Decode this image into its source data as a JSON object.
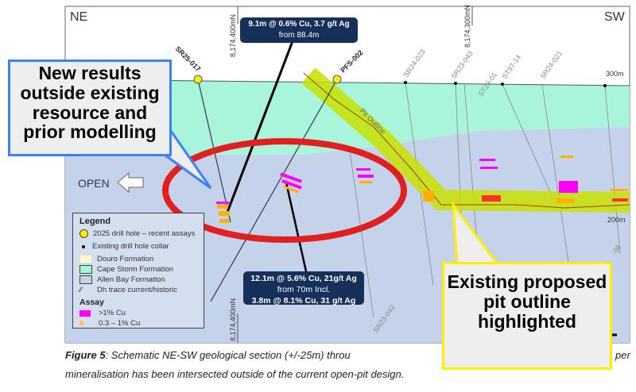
{
  "section": {
    "ne_label": "NE",
    "sw_label": "SW",
    "northing_1": "8,174,400mN",
    "northing_2": "8,174,300mN",
    "northing_3": "8,174,400mN",
    "elev_300": "300m",
    "elev_200": "200m",
    "pit_label": "Pit Outline",
    "open_label": "OPEN",
    "holes_new": [
      "SR25-017",
      "PFS-002"
    ],
    "holes_existing": [
      "SR24-023",
      "SR23-043",
      "ST23-01",
      "ST97-14",
      "SR24-021",
      "SR23-042",
      "-08"
    ]
  },
  "intercept_top": {
    "line1": "9.1m @ 0.6% Cu, 3.7 g/t Ag",
    "line2": "from 88.4m"
  },
  "intercept_bottom": {
    "line1": "12.1m @ 5.6% Cu, 21g/t Ag",
    "line2": "from 70m Incl.",
    "line3": "3.8m @ 8.1% Cu, 31 g/t Ag"
  },
  "callout_left": "New results outside existing resource and prior modelling",
  "callout_right": "Existing proposed pit outline highlighted",
  "legend": {
    "title": "Legend",
    "items": [
      "2025 drill hole – recent assays",
      "Existing drill hole collar",
      "Douro Formation",
      "Cape Storm Formation",
      "Allen Bay Formation",
      "Dh trace current/historic"
    ],
    "assay_title": "Assay",
    "assay_items": [
      ">1% Cu",
      "0.3 – 1% Cu"
    ]
  },
  "caption": {
    "label": "Figure 5",
    "line1": ": Schematic NE-SW geological section (+/-25m) throu",
    "line1_end": "per",
    "line2": "mineralisation has been intersected outside of the current open-pit design."
  },
  "colors": {
    "cape_storm": "#a8f5dc",
    "allen_bay": "#c5d3ea",
    "pit": "#c8e000",
    "highlight_ellipse": "#e02020",
    "high_grade": "#ff00ff",
    "low_grade": "#ffb000",
    "info_box": "#17305a"
  }
}
